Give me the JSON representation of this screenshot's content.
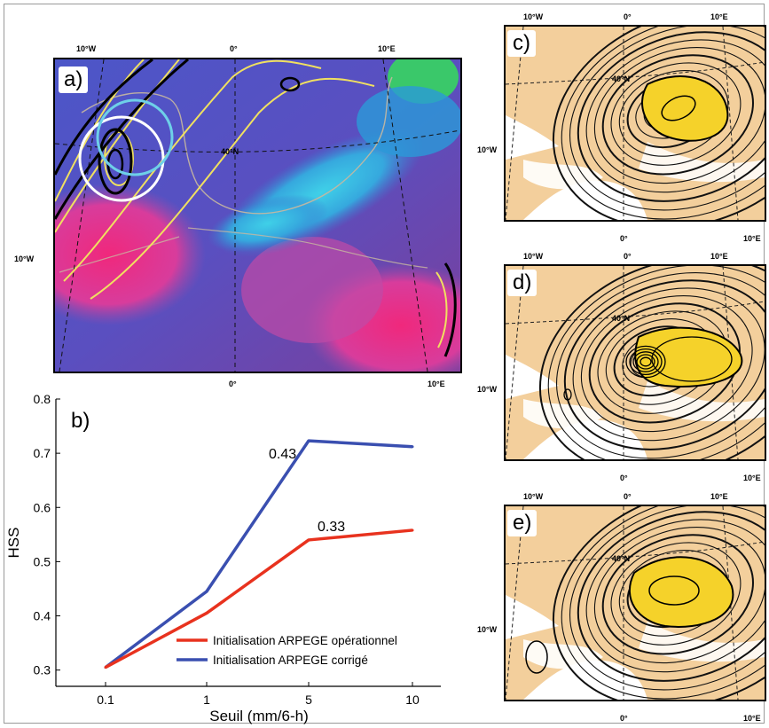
{
  "panels": {
    "a": {
      "label": "a)",
      "coords": {
        "top_w": "10°W",
        "top_0": "0°",
        "top_e": "10°E",
        "left_w": "10°W",
        "lat": "40°N",
        "bot_0": "0°",
        "bot_e": "10°E"
      }
    },
    "b": {
      "label": "b)"
    },
    "c": {
      "label": "c)",
      "coords": {
        "top_w": "10°W",
        "top_0": "0°",
        "top_e": "10°E",
        "left_w": "10°W",
        "lat": "40°N",
        "bot_0": "0°",
        "bot_e": "10°E"
      }
    },
    "d": {
      "label": "d)",
      "coords": {
        "top_w": "10°W",
        "top_0": "0°",
        "top_e": "10°E",
        "left_w": "10°W",
        "lat": "40°N",
        "bot_0": "0°",
        "bot_e": "10°E"
      }
    },
    "e": {
      "label": "e)",
      "coords": {
        "top_w": "10°W",
        "top_0": "0°",
        "top_e": "10°E",
        "left_w": "10°W",
        "lat": "40°N",
        "bot_0": "0°",
        "bot_e": "10°E"
      }
    }
  },
  "colors": {
    "operational": "#e8321e",
    "corrected": "#3a4fb0",
    "precip_fill": "#f5d22a",
    "land": "#f3cf9c"
  },
  "chart_data": {
    "type": "line",
    "categories": [
      "0.1",
      "1",
      "5",
      "10"
    ],
    "xlabel": "Seuil (mm/6-h)",
    "ylabel": "HSS",
    "ylim": [
      0.27,
      0.8
    ],
    "yticks": [
      "0.3",
      "0.4",
      "0.5",
      "0.6",
      "0.7",
      "0.8"
    ],
    "legend_position": "bottom-right",
    "series": [
      {
        "name": "Initialisation ARPEGE opérationnel",
        "values": [
          0.305,
          0.405,
          0.54,
          0.558
        ]
      },
      {
        "name": "Initialisation ARPEGE corrigé",
        "values": [
          0.305,
          0.445,
          0.723,
          0.712
        ]
      }
    ],
    "annotations": [
      {
        "text": "0.43",
        "x": "5",
        "y": 0.723
      },
      {
        "text": "0.33",
        "x": "5",
        "y": 0.54
      }
    ]
  }
}
